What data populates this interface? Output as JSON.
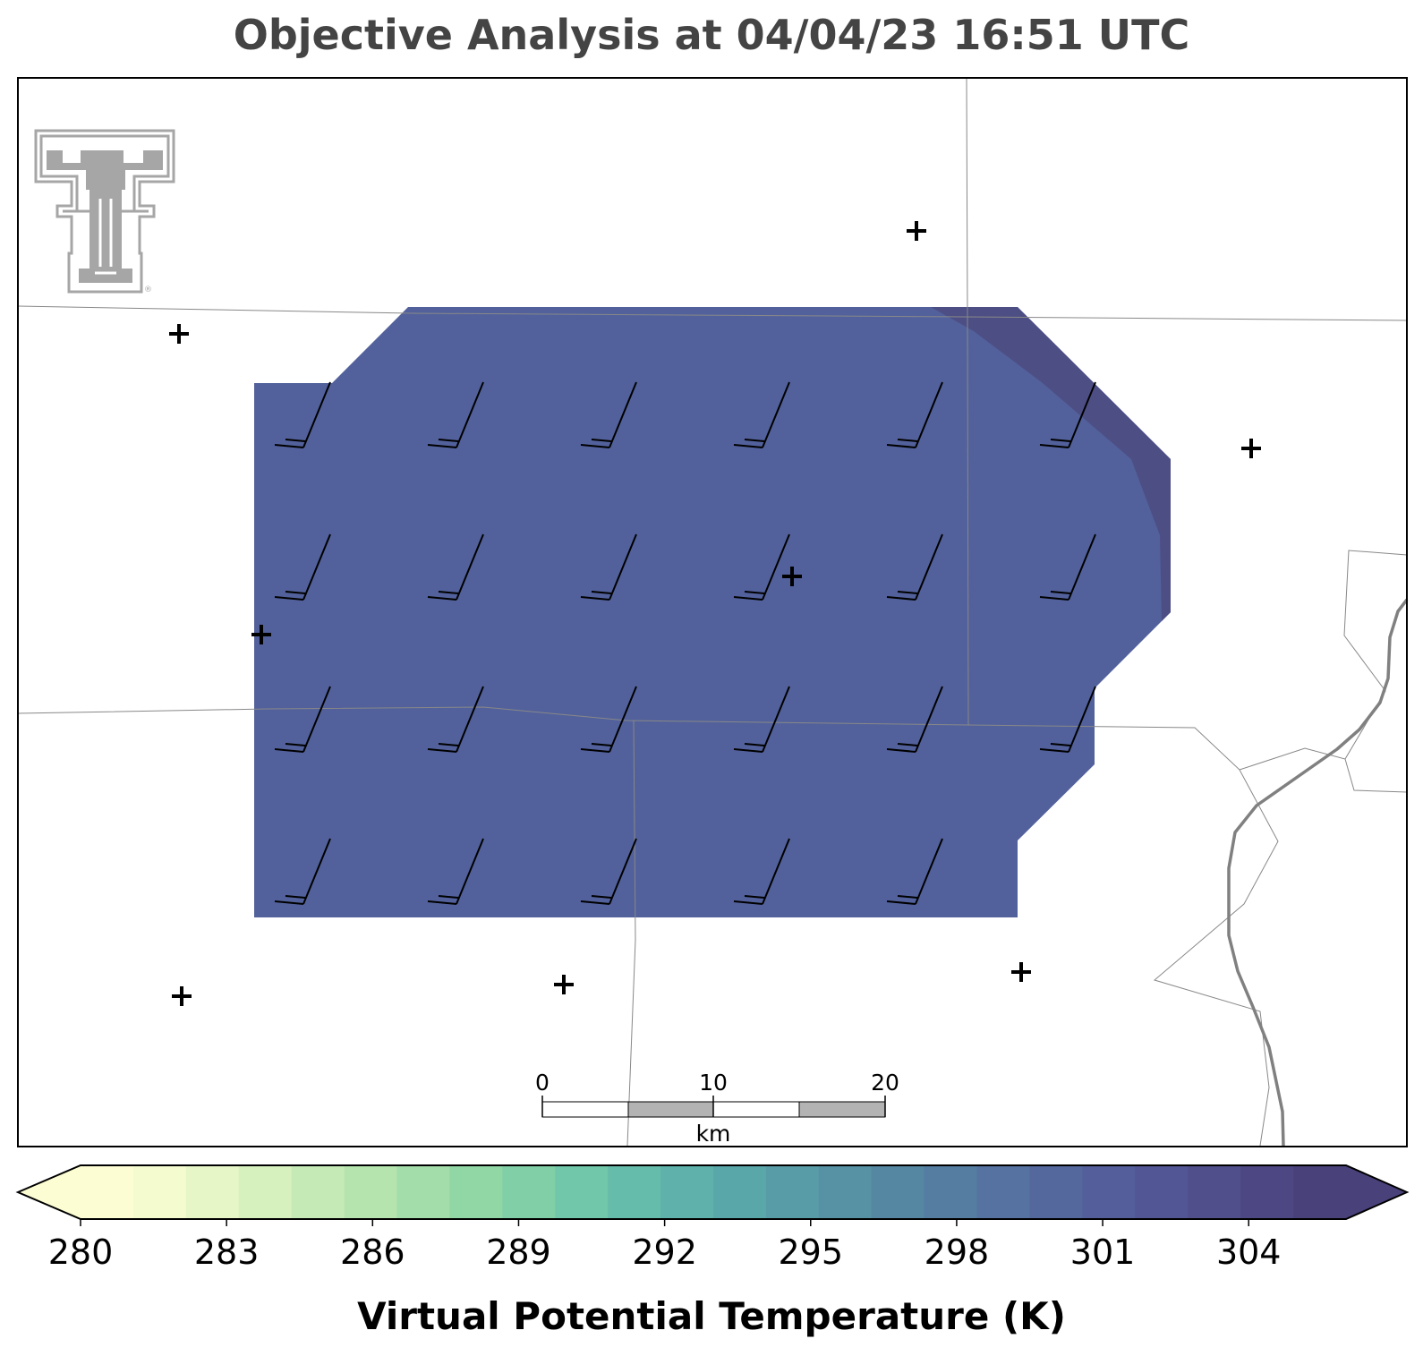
{
  "title": "Objective Analysis at 04/04/23 16:51 UTC",
  "logo": {
    "name": "texas-tech-double-t-logo",
    "color": "#a6a6a6"
  },
  "map": {
    "analysis_fill_color": "#52619b",
    "analysis_fill_high_color": "#4d4e84",
    "wind_barb_color": "#000000",
    "station_marker_color": "#000000",
    "boundary_color": "#888888",
    "river_color": "#808080"
  },
  "scalebar": {
    "ticks": [
      "0",
      "10",
      "20"
    ],
    "unit": "km"
  },
  "colorbar": {
    "label": "Virtual Potential Temperature (K)",
    "min": 280,
    "max": 306,
    "step": 1,
    "extend": "both",
    "tick_labels": [
      "280",
      "283",
      "286",
      "289",
      "292",
      "295",
      "298",
      "301",
      "304"
    ],
    "tick_values": [
      280,
      283,
      286,
      289,
      292,
      295,
      298,
      301,
      304
    ],
    "colors": [
      "#fdfdd3",
      "#f4fbcf",
      "#e6f6c6",
      "#d6f0be",
      "#c6eab6",
      "#b5e4af",
      "#a3dda9",
      "#91d6a5",
      "#80cfa6",
      "#71c7a9",
      "#66bcab",
      "#5eb2ab",
      "#5aa7aa",
      "#589ca7",
      "#5691a4",
      "#5586a2",
      "#557ca1",
      "#5572a0",
      "#55689e",
      "#535e9b",
      "#525695",
      "#504f8c",
      "#4d4883",
      "#49417a"
    ]
  }
}
